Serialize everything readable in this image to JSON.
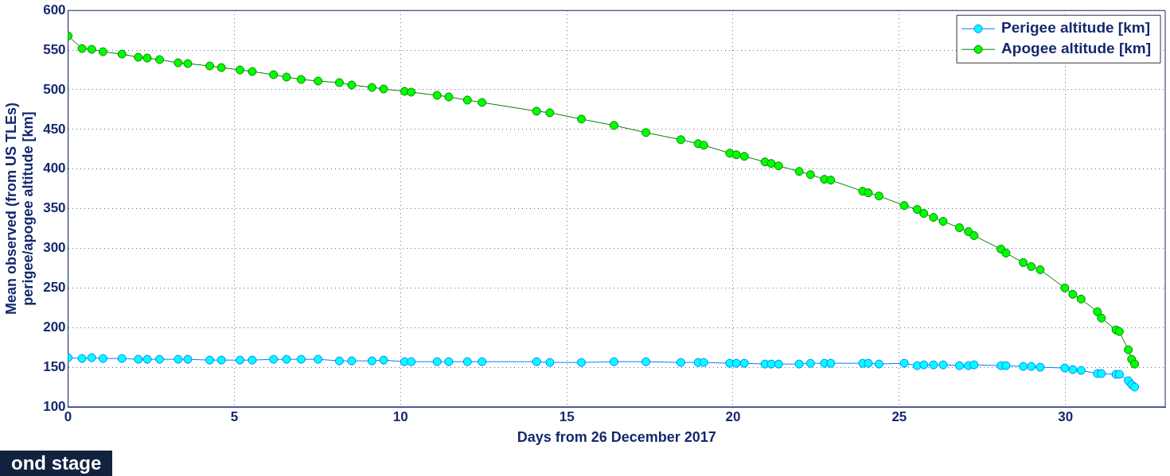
{
  "chart_data": {
    "type": "line",
    "xlabel": "Days from 26 December 2017",
    "ylabel": "Mean observed (from US TLEs)\nperigee/apogee altitude [km]",
    "x": [
      0,
      0.42,
      0.71,
      1.05,
      1.62,
      2.11,
      2.38,
      2.75,
      3.31,
      3.6,
      4.26,
      4.61,
      5.17,
      5.54,
      6.18,
      6.57,
      7.01,
      7.52,
      8.16,
      8.53,
      9.14,
      9.49,
      10.12,
      10.32,
      11.1,
      11.45,
      12.01,
      12.45,
      14.09,
      14.49,
      15.44,
      16.42,
      17.38,
      18.43,
      18.95,
      19.12,
      19.9,
      20.1,
      20.34,
      20.96,
      21.15,
      21.37,
      21.99,
      22.33,
      22.75,
      22.94,
      23.9,
      24.07,
      24.39,
      25.15,
      25.54,
      25.74,
      26.03,
      26.32,
      26.81,
      27.08,
      27.25,
      28.06,
      28.21,
      28.73,
      28.97,
      29.24,
      29.98,
      30.22,
      30.47,
      30.96,
      31.08,
      31.52,
      31.62,
      31.89,
      31.99,
      32.08
    ],
    "series": [
      {
        "name": "Perigee altitude [km]",
        "color": "#00ffff",
        "values": [
          162,
          161,
          162,
          161,
          161,
          160,
          160,
          160,
          160,
          160,
          159,
          159,
          159,
          159,
          160,
          160,
          160,
          160,
          158,
          158,
          158,
          159,
          157,
          157,
          157,
          157,
          157,
          157,
          157,
          156,
          156,
          157,
          157,
          156,
          156,
          156,
          155,
          155,
          155,
          154,
          154,
          154,
          154,
          155,
          155,
          155,
          155,
          155,
          154,
          155,
          152,
          153,
          153,
          153,
          152,
          152,
          153,
          152,
          152,
          151,
          151,
          150,
          149,
          147,
          146,
          142,
          142,
          141,
          141,
          133,
          128,
          125
        ]
      },
      {
        "name": "Apogee altitude [km]",
        "color": "#00ff00",
        "values": [
          568,
          552,
          551,
          548,
          545,
          541,
          540,
          538,
          534,
          533,
          530,
          528,
          525,
          523,
          519,
          516,
          513,
          511,
          509,
          506,
          503,
          501,
          498,
          497,
          493,
          491,
          487,
          484,
          473,
          471,
          463,
          455,
          446,
          437,
          432,
          430,
          420,
          418,
          416,
          409,
          407,
          404,
          397,
          393,
          387,
          386,
          372,
          370,
          366,
          354,
          349,
          344,
          339,
          334,
          326,
          321,
          316,
          299,
          294,
          282,
          277,
          273,
          250,
          242,
          236,
          220,
          212,
          197,
          195,
          172,
          160,
          154
        ]
      }
    ],
    "xlim": [
      0,
      33
    ],
    "xticks": [
      0,
      5,
      10,
      15,
      20,
      25,
      30
    ],
    "ylim": [
      100,
      600
    ],
    "yticks": [
      100,
      150,
      200,
      250,
      300,
      350,
      400,
      450,
      500,
      550,
      600
    ],
    "grid": true,
    "legend": "top right",
    "marker": "circle",
    "line_style": "solid",
    "annotations": [
      "ond stage"
    ]
  }
}
